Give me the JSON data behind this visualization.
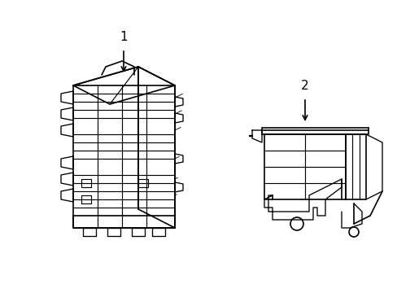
{
  "background_color": "#ffffff",
  "line_color": "#000000",
  "line_width": 1.2,
  "label1": "1",
  "label2": "2",
  "title": "",
  "figsize": [
    4.89,
    3.6
  ],
  "dpi": 100
}
